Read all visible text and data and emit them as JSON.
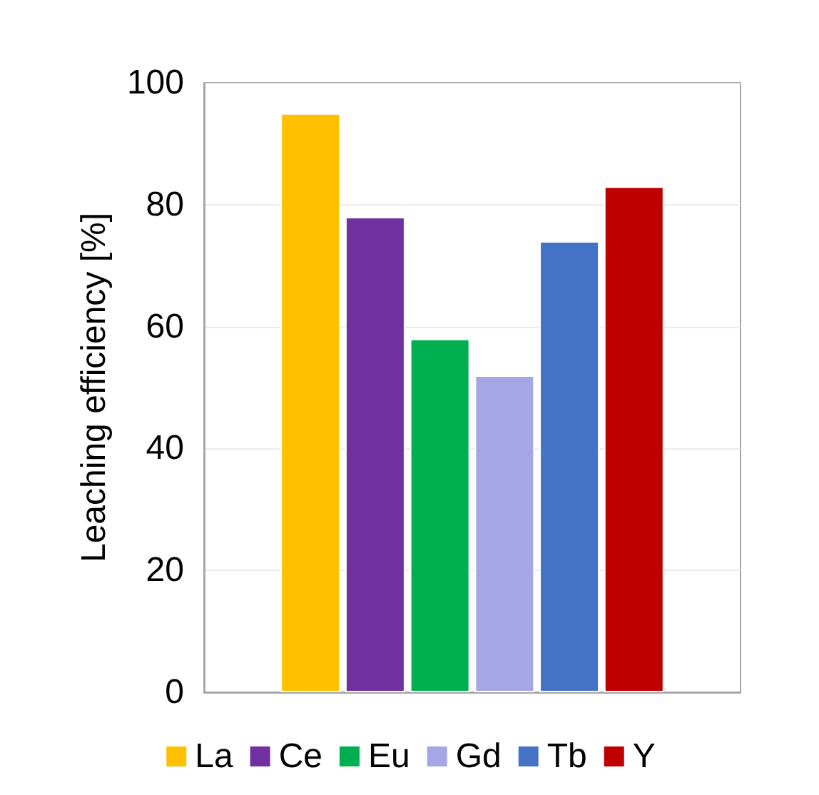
{
  "chart_data": {
    "type": "bar",
    "ylabel": "Leaching efficiency [%]",
    "categories": [
      null
    ],
    "series": [
      {
        "name": "La",
        "color": "#ffc000",
        "values": [
          95
        ]
      },
      {
        "name": "Ce",
        "color": "#7030a0",
        "values": [
          78
        ]
      },
      {
        "name": "Eu",
        "color": "#00b050",
        "values": [
          58
        ]
      },
      {
        "name": "Gd",
        "color": "#a6a6e6",
        "values": [
          52
        ]
      },
      {
        "name": "Tb",
        "color": "#4472c4",
        "values": [
          74
        ]
      },
      {
        "name": "Y",
        "color": "#c00000",
        "values": [
          83
        ]
      }
    ],
    "ylim": [
      0,
      100
    ],
    "yticks": [
      0,
      20,
      40,
      60,
      80,
      100
    ],
    "grid": "y",
    "legend": "bottom"
  }
}
